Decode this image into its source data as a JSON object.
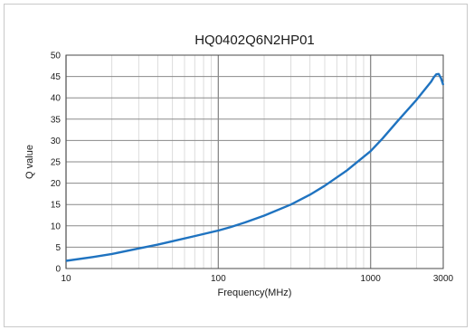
{
  "chart_data": {
    "type": "line",
    "title": "HQ0402Q6N2HP01",
    "xlabel": "Frequency(MHz)",
    "ylabel": "Q value",
    "xscale": "log",
    "xlim": [
      10,
      3000
    ],
    "ylim": [
      0,
      50
    ],
    "grid": true,
    "x_tick_labels": [
      "10",
      "100",
      "1000",
      "3000"
    ],
    "y_tick_labels": [
      "0",
      "5",
      "10",
      "15",
      "20",
      "25",
      "30",
      "35",
      "40",
      "45",
      "50"
    ],
    "colors": {
      "line": "#1f73c0",
      "grid_minor": "#d4d4d4",
      "grid_major": "#8a8a8a",
      "axis": "#4a4a4a"
    },
    "series": [
      {
        "x": [
          10,
          15,
          20,
          30,
          40,
          50,
          70,
          100,
          120,
          150,
          200,
          300,
          400,
          500,
          700,
          1000,
          1200,
          1500,
          2000,
          2500,
          2600,
          2700,
          2800,
          2900,
          3000
        ],
        "y": [
          1.8,
          2.7,
          3.4,
          4.7,
          5.6,
          6.4,
          7.6,
          8.9,
          9.7,
          10.8,
          12.4,
          15.0,
          17.3,
          19.4,
          23.0,
          27.5,
          30.5,
          34.5,
          39.5,
          43.8,
          44.8,
          45.5,
          45.6,
          44.6,
          43.0
        ]
      }
    ]
  }
}
